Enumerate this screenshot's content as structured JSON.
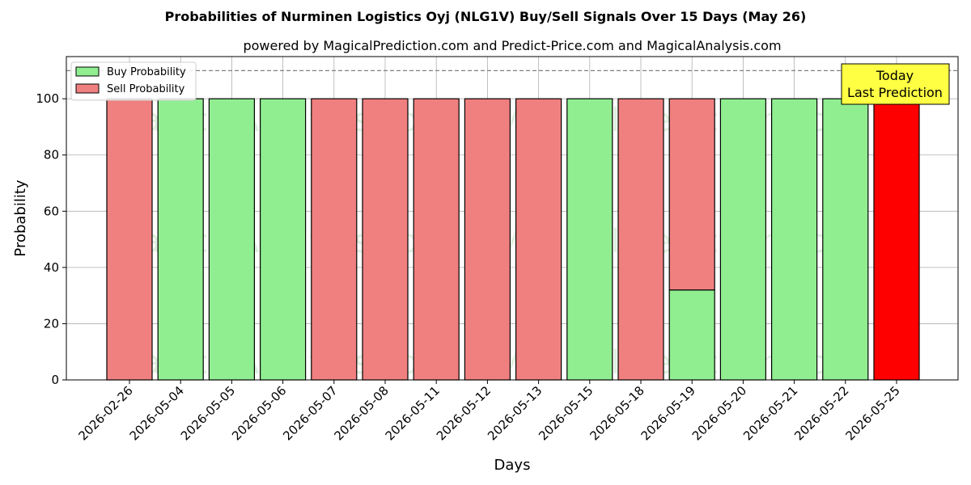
{
  "chart_data": {
    "type": "bar",
    "stacked": true,
    "title": "Probabilities of Nurminen Logistics Oyj (NLG1V) Buy/Sell Signals Over 15 Days (May 26)",
    "subtitle": "powered by MagicalPrediction.com and Predict-Price.com and MagicalAnalysis.com",
    "xlabel": "Days",
    "ylabel": "Probability",
    "ylim": [
      0,
      115
    ],
    "yticks": [
      0,
      20,
      40,
      60,
      80,
      100
    ],
    "grid": true,
    "legend_position": "top-left",
    "reference_line": 110,
    "categories": [
      "2026-02-26",
      "2026-05-04",
      "2026-05-05",
      "2026-05-06",
      "2026-05-07",
      "2026-05-08",
      "2026-05-11",
      "2026-05-12",
      "2026-05-13",
      "2026-05-15",
      "2026-05-18",
      "2026-05-19",
      "2026-05-20",
      "2026-05-21",
      "2026-05-22",
      "2026-05-25"
    ],
    "series": [
      {
        "name": "Buy Probability",
        "color": "#90ee90",
        "values": [
          0,
          100,
          100,
          100,
          0,
          0,
          0,
          0,
          0,
          100,
          0,
          32,
          100,
          100,
          100,
          0
        ]
      },
      {
        "name": "Sell Probability",
        "color": "#f08080",
        "values": [
          100,
          0,
          0,
          0,
          100,
          100,
          100,
          100,
          100,
          0,
          100,
          68,
          0,
          0,
          0,
          100
        ]
      }
    ],
    "highlight": {
      "index": 15,
      "color": "#ff0000"
    },
    "annotation": {
      "lines": [
        "Today",
        "Last Prediction"
      ],
      "background": "#ffff44"
    },
    "watermarks": [
      "MagicalAnalysis.com",
      "MagicalPrediction.com"
    ]
  }
}
